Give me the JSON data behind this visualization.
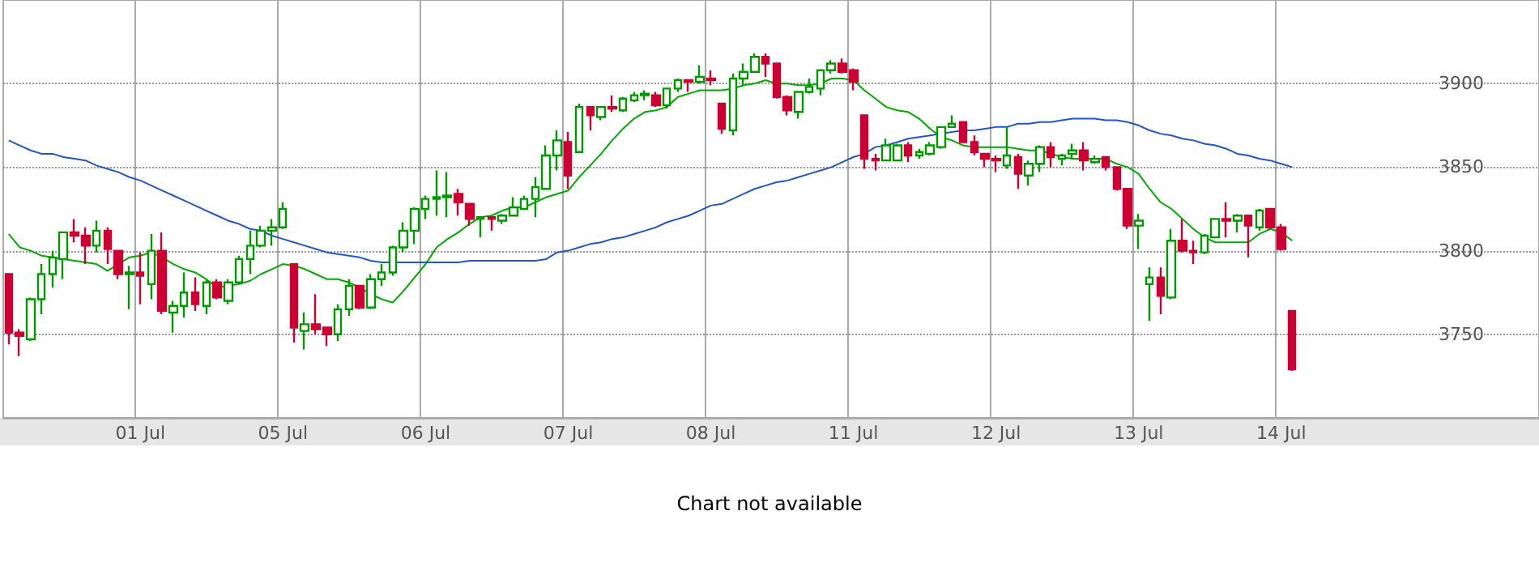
{
  "chart_data": {
    "type": "candlestick",
    "annotations": [
      "Chart not available"
    ],
    "categories": [
      null,
      null,
      null,
      null,
      null,
      null,
      null,
      null,
      null,
      null,
      null,
      null,
      "01 Jul",
      null,
      null,
      null,
      null,
      null,
      null,
      null,
      null,
      null,
      null,
      null,
      null,
      "05 Jul",
      null,
      null,
      null,
      null,
      null,
      null,
      null,
      null,
      null,
      null,
      null,
      null,
      "06 Jul",
      null,
      null,
      null,
      null,
      null,
      null,
      null,
      null,
      null,
      null,
      null,
      null,
      "07 Jul",
      null,
      null,
      null,
      null,
      null,
      null,
      null,
      null,
      null,
      null,
      null,
      null,
      "08 Jul",
      null,
      null,
      null,
      null,
      null,
      null,
      null,
      null,
      null,
      null,
      null,
      null,
      "11 Jul",
      null,
      null,
      null,
      null,
      null,
      null,
      null,
      null,
      null,
      null,
      null,
      null,
      "12 Jul",
      null,
      null,
      null,
      null,
      null,
      null,
      null,
      null,
      null,
      null,
      null,
      null,
      "13 Jul",
      null,
      null,
      null,
      null,
      null,
      null,
      null,
      null,
      null,
      null,
      null,
      null,
      "14 Jul",
      null,
      null,
      null,
      null,
      null,
      null,
      null,
      null,
      null,
      null,
      null,
      null,
      null,
      null,
      null,
      null,
      null,
      null,
      null,
      null,
      null,
      null,
      null
    ],
    "ohlc": [
      [
        3786,
        3786,
        3744,
        3751
      ],
      [
        3751,
        3753,
        3737,
        3749
      ],
      [
        3747,
        3772,
        3746,
        3771
      ],
      [
        3771,
        3792,
        3762,
        3786
      ],
      [
        3786,
        3800,
        3778,
        3796
      ],
      [
        3795,
        3811,
        3783,
        3811
      ],
      [
        3811,
        3819,
        3805,
        3809
      ],
      [
        3809,
        3814,
        3792,
        3803
      ],
      [
        3803,
        3818,
        3799,
        3812
      ],
      [
        3812,
        3814,
        3792,
        3801
      ],
      [
        3800,
        3800,
        3783,
        3786
      ],
      [
        3786,
        3791,
        3765,
        3787
      ],
      [
        3787,
        3799,
        3768,
        3785
      ],
      [
        3780,
        3810,
        3771,
        3800
      ],
      [
        3800,
        3811,
        3762,
        3764
      ],
      [
        3763,
        3770,
        3751,
        3767
      ],
      [
        3767,
        3787,
        3760,
        3775
      ],
      [
        3775,
        3784,
        3764,
        3768
      ],
      [
        3767,
        3783,
        3762,
        3781
      ],
      [
        3781,
        3783,
        3771,
        3772
      ],
      [
        3770,
        3783,
        3768,
        3781
      ],
      [
        3781,
        3797,
        3780,
        3795
      ],
      [
        3795,
        3812,
        3786,
        3803
      ],
      [
        3803,
        3815,
        3802,
        3812
      ],
      [
        3812,
        3819,
        3803,
        3814
      ],
      [
        3814,
        3829,
        3813,
        3825
      ],
      [
        3792,
        3792,
        3745,
        3754
      ],
      [
        3752,
        3763,
        3741,
        3756
      ],
      [
        3756,
        3774,
        3750,
        3753
      ],
      [
        3754,
        3754,
        3743,
        3750
      ],
      [
        3750,
        3768,
        3746,
        3765
      ],
      [
        3765,
        3783,
        3761,
        3779
      ],
      [
        3779,
        3779,
        3765,
        3766
      ],
      [
        3766,
        3786,
        3765,
        3783
      ],
      [
        3783,
        3792,
        3779,
        3787
      ],
      [
        3787,
        3803,
        3785,
        3802
      ],
      [
        3802,
        3817,
        3799,
        3812
      ],
      [
        3812,
        3826,
        3804,
        3825
      ],
      [
        3825,
        3833,
        3819,
        3831
      ],
      [
        3831,
        3848,
        3821,
        3832
      ],
      [
        3832,
        3847,
        3820,
        3833
      ],
      [
        3834,
        3837,
        3821,
        3829
      ],
      [
        3828,
        3828,
        3815,
        3819
      ],
      [
        3819,
        3820,
        3808,
        3820
      ],
      [
        3820,
        3820,
        3812,
        3819
      ],
      [
        3818,
        3822,
        3816,
        3821
      ],
      [
        3821,
        3832,
        3821,
        3826
      ],
      [
        3825,
        3833,
        3825,
        3831
      ],
      [
        3831,
        3844,
        3820,
        3838
      ],
      [
        3837,
        3863,
        3837,
        3857
      ],
      [
        3857,
        3872,
        3848,
        3866
      ],
      [
        3865,
        3871,
        3837,
        3845
      ],
      [
        3859,
        3888,
        3859,
        3886
      ],
      [
        3886,
        3886,
        3872,
        3881
      ],
      [
        3880,
        3886,
        3878,
        3886
      ],
      [
        3886,
        3893,
        3883,
        3885
      ],
      [
        3884,
        3892,
        3883,
        3891
      ],
      [
        3890,
        3895,
        3889,
        3893
      ],
      [
        3893,
        3896,
        3890,
        3894
      ],
      [
        3893,
        3895,
        3886,
        3887
      ],
      [
        3887,
        3897,
        3885,
        3897
      ],
      [
        3897,
        3903,
        3895,
        3902
      ],
      [
        3902,
        3902,
        3895,
        3901
      ],
      [
        3901,
        3911,
        3900,
        3904
      ],
      [
        3903,
        3908,
        3899,
        3902
      ],
      [
        3888,
        3888,
        3870,
        3873
      ],
      [
        3872,
        3906,
        3869,
        3903
      ],
      [
        3903,
        3912,
        3899,
        3907
      ],
      [
        3907,
        3918,
        3907,
        3916
      ],
      [
        3916,
        3918,
        3904,
        3912
      ],
      [
        3912,
        3912,
        3891,
        3892
      ],
      [
        3892,
        3893,
        3881,
        3884
      ],
      [
        3883,
        3895,
        3879,
        3895
      ],
      [
        3895,
        3903,
        3894,
        3898
      ],
      [
        3897,
        3908,
        3893,
        3908
      ],
      [
        3908,
        3914,
        3906,
        3912
      ],
      [
        3912,
        3915,
        3906,
        3907
      ],
      [
        3908,
        3909,
        3896,
        3901
      ],
      [
        3881,
        3881,
        3849,
        3855
      ],
      [
        3855,
        3858,
        3848,
        3854
      ],
      [
        3854,
        3867,
        3854,
        3863
      ],
      [
        3854,
        3864,
        3854,
        3863
      ],
      [
        3863,
        3865,
        3853,
        3857
      ],
      [
        3857,
        3861,
        3855,
        3859
      ],
      [
        3858,
        3865,
        3857,
        3863
      ],
      [
        3862,
        3874,
        3861,
        3874
      ],
      [
        3874,
        3881,
        3874,
        3876
      ],
      [
        3877,
        3877,
        3865,
        3865
      ],
      [
        3865,
        3869,
        3857,
        3859
      ],
      [
        3858,
        3858,
        3850,
        3855
      ],
      [
        3855,
        3857,
        3847,
        3854
      ],
      [
        3851,
        3874,
        3849,
        3857
      ],
      [
        3856,
        3858,
        3837,
        3846
      ],
      [
        3845,
        3854,
        3839,
        3852
      ],
      [
        3852,
        3863,
        3847,
        3862
      ],
      [
        3862,
        3865,
        3850,
        3856
      ],
      [
        3855,
        3858,
        3851,
        3857
      ],
      [
        3858,
        3864,
        3855,
        3860
      ],
      [
        3860,
        3865,
        3848,
        3854
      ],
      [
        3853,
        3857,
        3852,
        3855
      ],
      [
        3856,
        3856,
        3848,
        3850
      ],
      [
        3850,
        3850,
        3836,
        3837
      ],
      [
        3837,
        3837,
        3813,
        3815
      ],
      [
        3815,
        3822,
        3801,
        3818
      ],
      [
        3780,
        3790,
        3758,
        3784
      ],
      [
        3784,
        3790,
        3762,
        3773
      ],
      [
        3772,
        3813,
        3771,
        3806
      ],
      [
        3806,
        3819,
        3799,
        3800
      ],
      [
        3800,
        3806,
        3792,
        3799
      ],
      [
        3799,
        3810,
        3798,
        3809
      ],
      [
        3808,
        3819,
        3808,
        3819
      ],
      [
        3819,
        3829,
        3808,
        3818
      ],
      [
        3818,
        3822,
        3811,
        3821
      ],
      [
        3821,
        3821,
        3796,
        3815
      ],
      [
        3814,
        3825,
        3812,
        3824
      ],
      [
        3825,
        3825,
        3813,
        3814
      ],
      [
        3814,
        3816,
        3800,
        3801
      ],
      [
        3764,
        3764,
        3728,
        3729
      ],
      null,
      null,
      null,
      null,
      null,
      null,
      null,
      null,
      null,
      null,
      null,
      null,
      null,
      null,
      null,
      null,
      null,
      null,
      null,
      null,
      null,
      null
    ],
    "series": [
      {
        "type": "line",
        "color": "#00aa00",
        "values": [
          3810,
          3802,
          3800,
          3797,
          3796,
          3795,
          3794,
          3793,
          3792,
          3788,
          3792,
          3796,
          3797,
          3799,
          3796,
          3792,
          3789,
          3787,
          3783,
          3778,
          3779,
          3780,
          3782,
          3786,
          3789,
          3792,
          3791,
          3789,
          3786,
          3783,
          3783,
          3781,
          3778,
          3774,
          3771,
          3769,
          3776,
          3784,
          3792,
          3802,
          3807,
          3811,
          3816,
          3820,
          3821,
          3824,
          3826,
          3826,
          3829,
          3832,
          3834,
          3836,
          3844,
          3851,
          3858,
          3866,
          3873,
          3879,
          3883,
          3884,
          3886,
          3892,
          3894,
          3896,
          3896,
          3896,
          3897,
          3899,
          3900,
          3902,
          3900,
          3900,
          3899,
          3899,
          3900,
          3903,
          3903,
          3902,
          3896,
          3891,
          3886,
          3884,
          3883,
          3879,
          3873,
          3868,
          3866,
          3863,
          3862,
          3862,
          3862,
          3862,
          3861,
          3860,
          3860,
          3858,
          3856,
          3855,
          3855,
          3855,
          3855,
          3852,
          3850,
          3846,
          3837,
          3829,
          3825,
          3819,
          3813,
          3808,
          3805,
          3805,
          3805,
          3805,
          3810,
          3813,
          3811,
          3806,
          null,
          null,
          null,
          null,
          null,
          null,
          null,
          null,
          null,
          null,
          null,
          null,
          null,
          null,
          null,
          null,
          null,
          null,
          null,
          null,
          null,
          null
        ]
      },
      {
        "type": "line",
        "color": "#2255cc",
        "values": [
          3866,
          3863,
          3860,
          3858,
          3858,
          3856,
          3855,
          3854,
          3851,
          3849,
          3847,
          3844,
          3842,
          3839,
          3836,
          3833,
          3830,
          3827,
          3824,
          3821,
          3818,
          3816,
          3813,
          3812,
          3809,
          3807,
          3805,
          3803,
          3801,
          3799,
          3798,
          3797,
          3796,
          3794,
          3793,
          3793,
          3793,
          3793,
          3793,
          3793,
          3793,
          3793,
          3794,
          3794,
          3794,
          3794,
          3794,
          3794,
          3794,
          3795,
          3799,
          3800,
          3802,
          3804,
          3805,
          3807,
          3808,
          3810,
          3812,
          3814,
          3817,
          3819,
          3821,
          3824,
          3827,
          3828,
          3831,
          3834,
          3837,
          3839,
          3841,
          3842,
          3844,
          3846,
          3848,
          3850,
          3853,
          3856,
          3858,
          3862,
          3863,
          3865,
          3867,
          3868,
          3869,
          3870,
          3871,
          3872,
          3872,
          3873,
          3874,
          3874,
          3876,
          3876,
          3877,
          3877,
          3878,
          3879,
          3879,
          3879,
          3878,
          3878,
          3877,
          3875,
          3872,
          3870,
          3869,
          3867,
          3866,
          3864,
          3863,
          3861,
          3858,
          3857,
          3855,
          3854,
          3852,
          3850,
          null,
          null,
          null,
          null,
          null,
          null,
          null,
          null,
          null,
          null,
          null,
          null,
          null,
          null,
          null,
          null,
          null,
          null,
          null,
          null,
          null,
          null
        ]
      }
    ],
    "ylim": [
      3700,
      3950
    ],
    "yticks": [
      3750,
      3800,
      3850,
      3900
    ],
    "grid": true,
    "marker": "none"
  }
}
